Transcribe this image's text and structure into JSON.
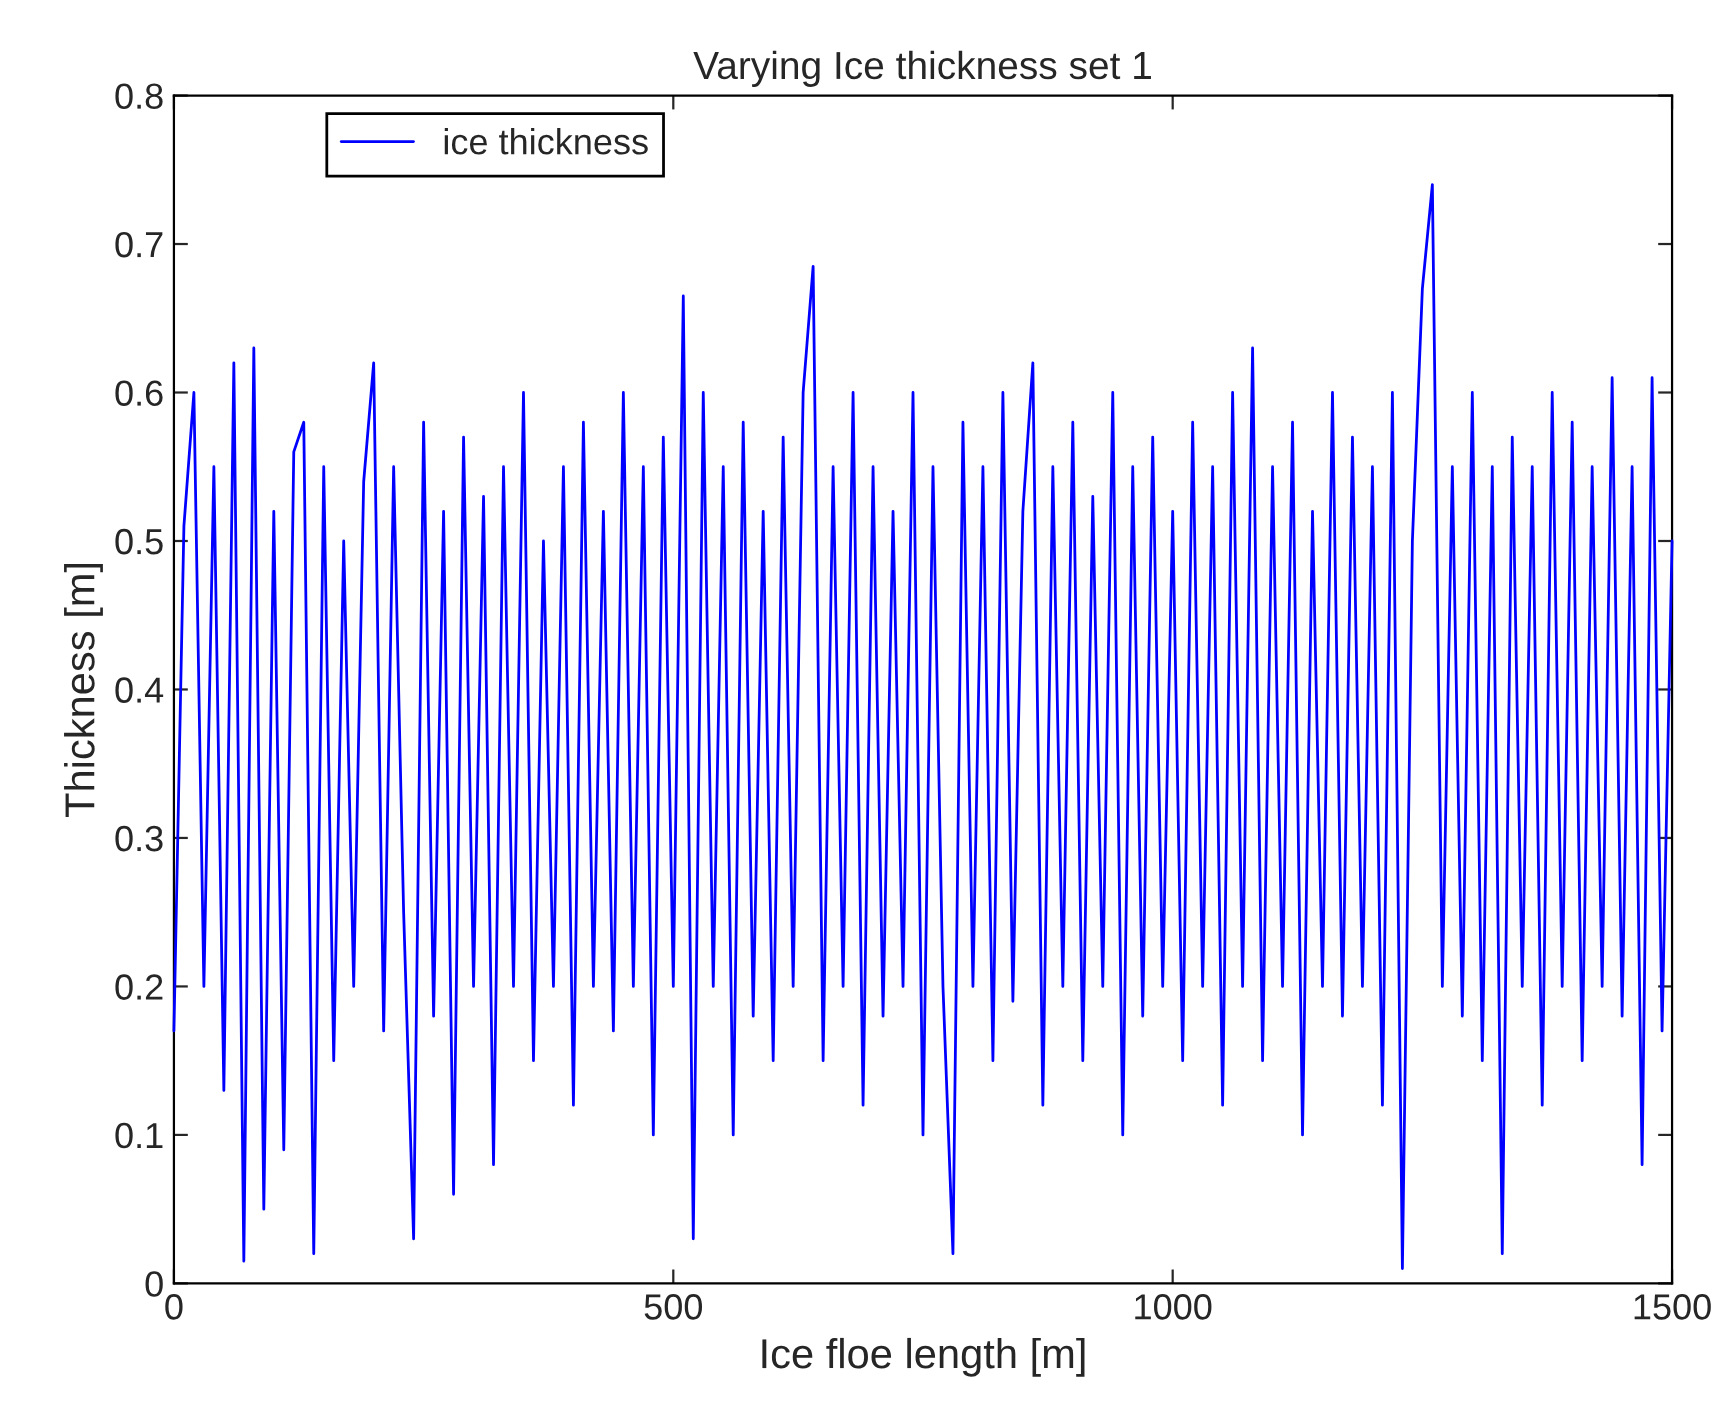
{
  "chart_data": {
    "type": "line",
    "title": "Varying Ice thickness set 1",
    "xlabel": "Ice floe length [m]",
    "ylabel": "Thickness [m]",
    "x": [
      0,
      10,
      20,
      30,
      40,
      50,
      60,
      70,
      80,
      90,
      100,
      110,
      120,
      130,
      140,
      150,
      160,
      170,
      180,
      190,
      200,
      210,
      220,
      230,
      240,
      250,
      260,
      270,
      280,
      290,
      300,
      310,
      320,
      330,
      340,
      350,
      360,
      370,
      380,
      390,
      400,
      410,
      420,
      430,
      440,
      450,
      460,
      470,
      480,
      490,
      500,
      510,
      520,
      530,
      540,
      550,
      560,
      570,
      580,
      590,
      600,
      610,
      620,
      630,
      640,
      650,
      660,
      670,
      680,
      690,
      700,
      710,
      720,
      730,
      740,
      750,
      760,
      770,
      780,
      790,
      800,
      810,
      820,
      830,
      840,
      850,
      860,
      870,
      880,
      890,
      900,
      910,
      920,
      930,
      940,
      950,
      960,
      970,
      980,
      990,
      1000,
      1010,
      1020,
      1030,
      1040,
      1050,
      1060,
      1070,
      1080,
      1090,
      1100,
      1110,
      1120,
      1130,
      1140,
      1150,
      1160,
      1170,
      1180,
      1190,
      1200,
      1210,
      1220,
      1230,
      1240,
      1250,
      1260,
      1270,
      1280,
      1290,
      1300,
      1310,
      1320,
      1330,
      1340,
      1350,
      1360,
      1370,
      1380,
      1390,
      1400,
      1410,
      1420,
      1430,
      1440,
      1450,
      1460,
      1470,
      1480,
      1490,
      1500
    ],
    "series": [
      {
        "name": "ice thickness",
        "color": "#0000ff",
        "values": [
          0.17,
          0.51,
          0.6,
          0.2,
          0.55,
          0.13,
          0.62,
          0.015,
          0.63,
          0.05,
          0.52,
          0.09,
          0.56,
          0.58,
          0.02,
          0.55,
          0.15,
          0.5,
          0.2,
          0.54,
          0.62,
          0.17,
          0.55,
          0.25,
          0.03,
          0.58,
          0.18,
          0.52,
          0.06,
          0.57,
          0.2,
          0.53,
          0.08,
          0.55,
          0.2,
          0.6,
          0.15,
          0.5,
          0.2,
          0.55,
          0.12,
          0.58,
          0.2,
          0.52,
          0.17,
          0.6,
          0.2,
          0.55,
          0.1,
          0.57,
          0.2,
          0.665,
          0.03,
          0.6,
          0.2,
          0.55,
          0.1,
          0.58,
          0.18,
          0.52,
          0.15,
          0.57,
          0.2,
          0.6,
          0.685,
          0.15,
          0.55,
          0.2,
          0.6,
          0.12,
          0.55,
          0.18,
          0.52,
          0.2,
          0.6,
          0.1,
          0.55,
          0.2,
          0.02,
          0.58,
          0.2,
          0.55,
          0.15,
          0.6,
          0.19,
          0.52,
          0.62,
          0.12,
          0.55,
          0.2,
          0.58,
          0.15,
          0.53,
          0.2,
          0.6,
          0.1,
          0.55,
          0.18,
          0.57,
          0.2,
          0.52,
          0.15,
          0.58,
          0.2,
          0.55,
          0.12,
          0.6,
          0.2,
          0.63,
          0.15,
          0.55,
          0.2,
          0.58,
          0.1,
          0.52,
          0.2,
          0.6,
          0.18,
          0.57,
          0.2,
          0.55,
          0.12,
          0.6,
          0.01,
          0.5,
          0.67,
          0.74,
          0.2,
          0.55,
          0.18,
          0.6,
          0.15,
          0.55,
          0.02,
          0.57,
          0.2,
          0.55,
          0.12,
          0.6,
          0.2,
          0.58,
          0.15,
          0.55,
          0.2,
          0.61,
          0.18,
          0.55,
          0.08,
          0.61,
          0.17,
          0.5
        ]
      }
    ],
    "xlim": [
      0,
      1500
    ],
    "xticks": [
      0,
      500,
      1000,
      1500
    ],
    "ylim": [
      0,
      0.8
    ],
    "yticks": [
      0,
      0.1,
      0.2,
      0.3,
      0.4,
      0.5,
      0.6,
      0.7,
      0.8
    ],
    "grid": false,
    "legend": "top left",
    "line_style": "solid",
    "marker": "none"
  }
}
